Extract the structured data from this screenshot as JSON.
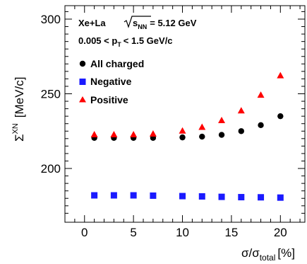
{
  "chart_data": {
    "type": "scatter",
    "x": [
      1,
      3,
      5,
      7,
      10,
      12,
      14,
      16,
      18,
      20
    ],
    "series": [
      {
        "name": "All charged",
        "color": "#000000",
        "marker": "circle",
        "values": [
          220.5,
          220.5,
          220.5,
          220.5,
          220.8,
          221.3,
          222.5,
          225.0,
          229.0,
          235.0
        ]
      },
      {
        "name": "Negative",
        "color": "#1a1aff",
        "marker": "square",
        "values": [
          182.0,
          182.0,
          182.0,
          181.8,
          181.5,
          181.3,
          181.0,
          180.8,
          180.7,
          180.5
        ]
      },
      {
        "name": "Positive",
        "color": "#ff0000",
        "marker": "triangle",
        "values": [
          222.5,
          222.5,
          222.5,
          223.0,
          225.0,
          227.5,
          232.0,
          238.5,
          249.0,
          262.0
        ]
      }
    ],
    "xlim": [
      -2,
      22.5
    ],
    "ylim": [
      164,
      309
    ],
    "xticks": [
      0,
      5,
      10,
      15,
      20
    ],
    "yticks": [
      200,
      250,
      300
    ],
    "ylabel": {
      "main": "Σ",
      "sup": "XN",
      "unit": "[MeV/c]"
    },
    "xlabel": {
      "num": "σ/σ",
      "sub": "total",
      "unit": "[%]"
    },
    "annotations": {
      "system": "Xe+La",
      "energy_prefix": "√s",
      "energy_sub": "NN",
      "energy_value": "= 5.12 GeV",
      "pt_prefix": "0.005 < p",
      "pt_sub": "T",
      "pt_suffix": "< 1.5 GeV/c"
    },
    "legend_position": "top-left",
    "grid": false
  }
}
